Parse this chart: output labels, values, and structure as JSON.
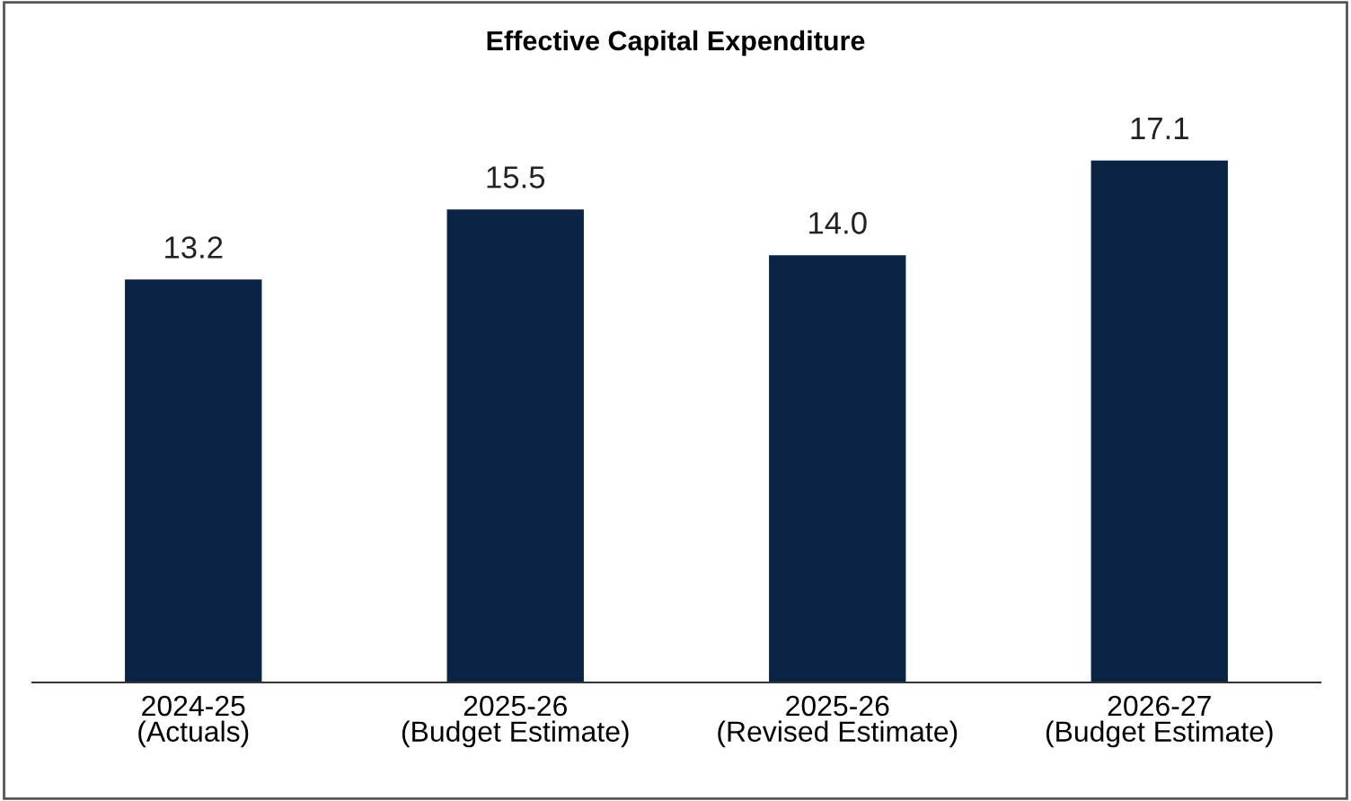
{
  "chart_data": {
    "type": "bar",
    "title": "Effective Capital Expenditure",
    "categories": [
      "2024-25\n(Actuals)",
      "2025-26\n(Budget Estimate)",
      "2025-26\n(Revised Estimate)",
      "2026-27\n(Budget Estimate)"
    ],
    "values": [
      13.2,
      15.5,
      14.0,
      17.1
    ],
    "value_labels": [
      "13.2",
      "15.5",
      "14.0",
      "17.1"
    ],
    "color": "#0b2345",
    "grid": false,
    "legend": false
  }
}
